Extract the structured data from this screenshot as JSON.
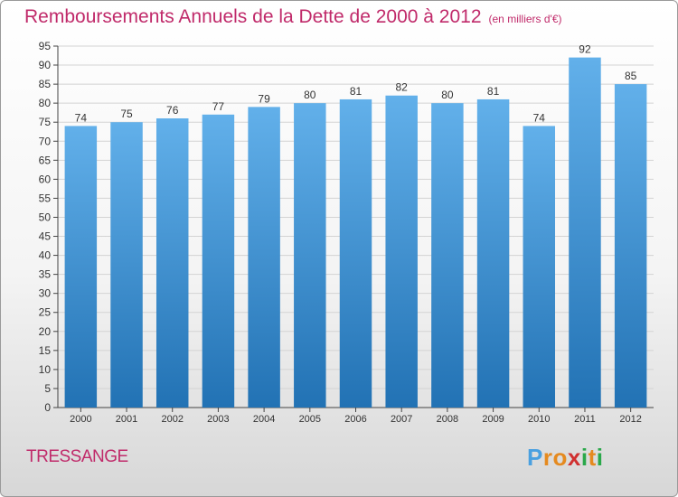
{
  "title": "Remboursements Annuels de la Dette de 2000 à 2012",
  "unit": "(en milliers d'€)",
  "commune": "TRESSANGE",
  "logo": {
    "letters": [
      "P",
      "r",
      "o",
      "x",
      "i",
      "t",
      "i"
    ],
    "colors": [
      "#4aa0e0",
      "#e58a1f",
      "#e58a1f",
      "#d03030",
      "#2aa84a",
      "#e58a1f",
      "#2aa84a"
    ]
  },
  "colors": {
    "title": "#c02a6a",
    "bar_top": "#62b0ea",
    "bar_bottom": "#2272b4",
    "grid": "#d3d3d3",
    "axis": "#444444"
  },
  "chart_data": {
    "type": "bar",
    "title": "Remboursements Annuels de la Dette de 2000 à 2012",
    "xlabel": "",
    "ylabel": "",
    "categories": [
      "2000",
      "2001",
      "2002",
      "2003",
      "2004",
      "2005",
      "2006",
      "2007",
      "2008",
      "2009",
      "2010",
      "2011",
      "2012"
    ],
    "values": [
      74,
      75,
      76,
      77,
      79,
      80,
      81,
      82,
      80,
      81,
      74,
      92,
      85
    ],
    "ylim": [
      0,
      95
    ],
    "yticks": [
      0,
      5,
      10,
      15,
      20,
      25,
      30,
      35,
      40,
      45,
      50,
      55,
      60,
      65,
      70,
      75,
      80,
      85,
      90,
      95
    ],
    "grid": true
  }
}
